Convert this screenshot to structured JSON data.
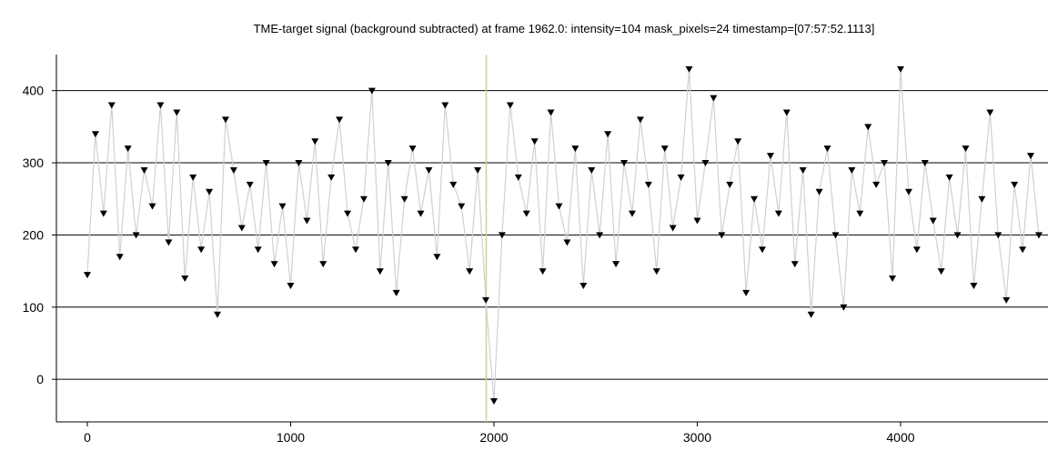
{
  "chart_data": {
    "type": "line",
    "title": "TME-target signal (background subtracted) at frame 1962.0: intensity=104 mask_pixels=24 timestamp=[07:57:52.1113]",
    "x": [
      0,
      40,
      80,
      120,
      160,
      200,
      240,
      280,
      320,
      360,
      400,
      440,
      480,
      520,
      560,
      600,
      640,
      680,
      720,
      760,
      800,
      840,
      880,
      920,
      960,
      1000,
      1040,
      1080,
      1120,
      1160,
      1200,
      1240,
      1280,
      1320,
      1360,
      1400,
      1440,
      1480,
      1520,
      1560,
      1600,
      1640,
      1680,
      1720,
      1760,
      1800,
      1840,
      1880,
      1920,
      1960,
      2000,
      2040,
      2080,
      2120,
      2160,
      2200,
      2240,
      2280,
      2320,
      2360,
      2400,
      2440,
      2480,
      2520,
      2560,
      2600,
      2640,
      2680,
      2720,
      2760,
      2800,
      2840,
      2880,
      2920,
      2960,
      3000,
      3040,
      3080,
      3120,
      3160,
      3200,
      3240,
      3280,
      3320,
      3360,
      3400,
      3440,
      3480,
      3520,
      3560,
      3600,
      3640,
      3680,
      3720,
      3760,
      3800,
      3840,
      3880,
      3920,
      3960,
      4000,
      4040,
      4080,
      4120,
      4160,
      4200,
      4240,
      4280,
      4320,
      4360,
      4400,
      4440,
      4480,
      4520,
      4560,
      4600,
      4640,
      4680
    ],
    "series": [
      {
        "color": "#000000",
        "line_color": "#d0d0d0",
        "values": [
          145,
          340,
          230,
          380,
          170,
          320,
          200,
          290,
          240,
          380,
          190,
          370,
          140,
          280,
          180,
          260,
          90,
          360,
          290,
          210,
          270,
          180,
          300,
          160,
          240,
          130,
          300,
          220,
          330,
          160,
          280,
          360,
          230,
          180,
          250,
          400,
          150,
          300,
          120,
          250,
          320,
          230,
          290,
          170,
          380,
          270,
          240,
          150,
          290,
          110,
          -30,
          200,
          380,
          280,
          230,
          330,
          150,
          370,
          240,
          190,
          320,
          130,
          290,
          200,
          340,
          160,
          300,
          230,
          360,
          270,
          150,
          320,
          210,
          280,
          430,
          220,
          300,
          390,
          200,
          270,
          330,
          120,
          250,
          180,
          310,
          230,
          370,
          160,
          290,
          90,
          260,
          320,
          200,
          100,
          290,
          230,
          350,
          270,
          300,
          140,
          430,
          260,
          180,
          300,
          220,
          150,
          280,
          200,
          320,
          130,
          250,
          370,
          200,
          110,
          270,
          180,
          310,
          200
        ]
      }
    ],
    "marker_x": 1962,
    "marker_color": "#d8d08a",
    "xlim": [
      -152,
      4725
    ],
    "ylim": [
      -59,
      450
    ],
    "xticks": [
      0,
      1000,
      2000,
      3000,
      4000
    ],
    "yticks": [
      0,
      100,
      200,
      300,
      400
    ],
    "grid": true
  }
}
